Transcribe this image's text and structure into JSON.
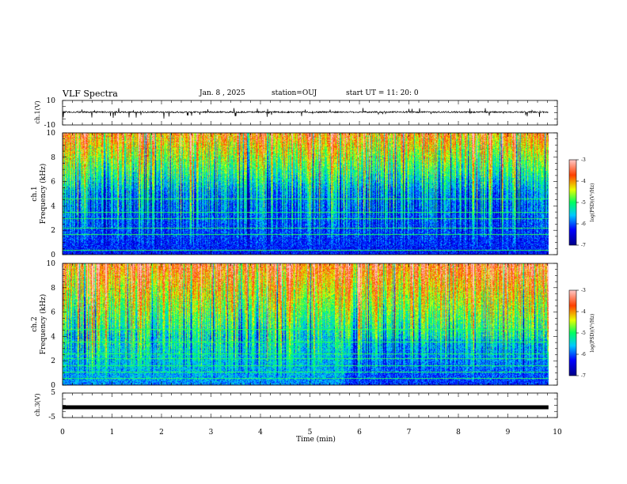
{
  "header": {
    "title": "VLF Spectra",
    "date": "Jan. 8 , 2025",
    "station": "station=OUJ",
    "start": "start UT = 11: 20: 0"
  },
  "chart_data": [
    {
      "type": "line",
      "name": "ch1-waveform",
      "ylabel": "ch.1(V)",
      "ylim": [
        -10,
        10
      ],
      "ytick_labels": [
        "10",
        "-10"
      ],
      "baseline": 0,
      "description_values": {
        "typical": 0.5,
        "spike_min": -3.5,
        "spike_max": 4
      }
    },
    {
      "type": "heatmap",
      "name": "ch1-spectrogram",
      "ylabel_line1": "ch.1",
      "ylabel_line2": "Frequency (kHz)",
      "ylim": [
        0,
        10
      ],
      "yticks": [
        0,
        2,
        4,
        6,
        8,
        10
      ],
      "colorbar": {
        "label": "log(PSD)(V²/Hz)",
        "range": [
          -7,
          -3
        ],
        "ticks": [
          -7,
          -6,
          -5,
          -4,
          -3
        ]
      }
    },
    {
      "type": "heatmap",
      "name": "ch2-spectrogram",
      "ylabel_line1": "ch.2",
      "ylabel_line2": "Frequency (kHz)",
      "ylim": [
        0,
        10
      ],
      "yticks": [
        0,
        2,
        4,
        6,
        8,
        10
      ],
      "colorbar": {
        "label": "log(PSD)(V²/Hz)",
        "range": [
          -7,
          -3
        ],
        "ticks": [
          -7,
          -6,
          -5,
          -4,
          -3
        ]
      }
    },
    {
      "type": "line",
      "name": "ch3-waveform",
      "ylabel": "ch.3(V)",
      "ylim": [
        -5,
        5
      ],
      "ytick_labels": [
        "5",
        "-5"
      ],
      "constant_value": -0.8
    }
  ],
  "xaxis": {
    "label": "Time (min)",
    "range": [
      0,
      10
    ],
    "ticks": [
      "0",
      "1",
      "2",
      "3",
      "4",
      "5",
      "6",
      "7",
      "8",
      "9",
      "10"
    ],
    "data_end": 9.82
  },
  "colors": {
    "low": "#0000c8",
    "mid": "#00e07a",
    "high": "#f02010"
  }
}
